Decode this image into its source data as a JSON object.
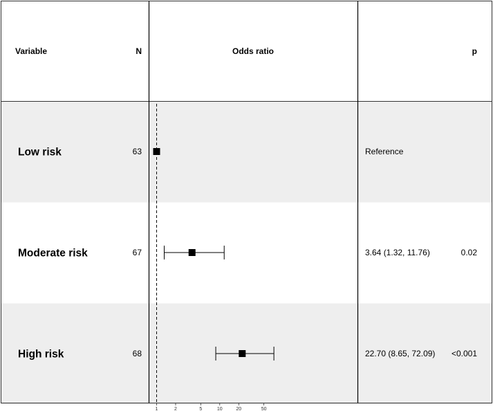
{
  "header": {
    "variable": "Variable",
    "n": "N",
    "odds_ratio": "Odds ratio",
    "p": "p"
  },
  "chart_data": {
    "type": "forest",
    "x_scale": "log",
    "reference_value": 1,
    "xlim": [
      1,
      80
    ],
    "x_ticks": [
      1,
      2,
      5,
      10,
      20,
      50
    ],
    "x_tick_labels": [
      "1",
      "2",
      "5",
      "10",
      "20",
      "50"
    ],
    "rows": [
      {
        "variable": "Low risk",
        "n": "63",
        "estimate_text": "Reference",
        "p": "",
        "or": 1.0,
        "ci_low": null,
        "ci_high": null
      },
      {
        "variable": "Moderate risk",
        "n": "67",
        "estimate_text": "3.64 (1.32, 11.76)",
        "p": "0.02",
        "or": 3.64,
        "ci_low": 1.32,
        "ci_high": 11.76
      },
      {
        "variable": "High risk",
        "n": "68",
        "estimate_text": "22.70 (8.65, 72.09)",
        "p": "<0.001",
        "or": 22.7,
        "ci_low": 8.65,
        "ci_high": 72.09
      }
    ],
    "colors": {
      "band_shade": "#eeeeee",
      "band_plain": "#ffffff",
      "marker": "#000000"
    }
  }
}
